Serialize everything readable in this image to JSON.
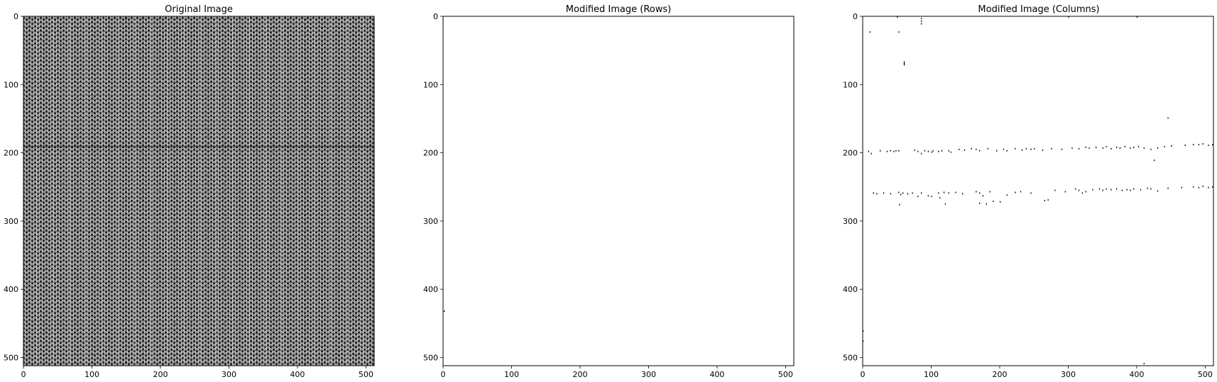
{
  "chart_data": [
    {
      "type": "heatmap",
      "title": "Original Image",
      "xlabel": "",
      "ylabel": "",
      "x_ticks": [
        0,
        100,
        200,
        300,
        400,
        500
      ],
      "y_ticks": [
        0,
        100,
        200,
        300,
        400,
        500
      ],
      "xlim": [
        0,
        512
      ],
      "ylim": [
        512,
        0
      ],
      "colormap": "gray",
      "content": "dense woven texture"
    },
    {
      "type": "heatmap",
      "title": "Modified Image (Rows)",
      "xlabel": "",
      "ylabel": "",
      "x_ticks": [
        0,
        100,
        200,
        300,
        400,
        500
      ],
      "y_ticks": [
        0,
        100,
        200,
        300,
        400,
        500
      ],
      "xlim": [
        0,
        512
      ],
      "ylim": [
        512,
        0
      ],
      "colormap": "gray",
      "marks": [
        [
          1,
          431
        ]
      ]
    },
    {
      "type": "heatmap",
      "title": "Modified Image (Columns)",
      "xlabel": "",
      "ylabel": "",
      "x_ticks": [
        0,
        100,
        200,
        300,
        400,
        500
      ],
      "y_ticks": [
        0,
        100,
        200,
        300,
        400,
        500
      ],
      "xlim": [
        0,
        512
      ],
      "ylim": [
        512,
        0
      ],
      "colormap": "gray",
      "marks": [
        [
          50,
          0
        ],
        [
          85,
          2
        ],
        [
          85,
          6
        ],
        [
          85,
          10
        ],
        [
          300,
          0
        ],
        [
          400,
          0
        ],
        [
          10,
          22
        ],
        [
          52,
          22
        ],
        [
          60,
          66
        ],
        [
          60,
          68
        ],
        [
          60,
          70
        ],
        [
          445,
          148
        ],
        [
          425,
          210
        ],
        [
          8,
          197
        ],
        [
          12,
          200
        ],
        [
          25,
          196
        ],
        [
          35,
          197
        ],
        [
          40,
          196
        ],
        [
          45,
          197
        ],
        [
          48,
          196
        ],
        [
          52,
          196
        ],
        [
          75,
          195
        ],
        [
          80,
          197
        ],
        [
          85,
          200
        ],
        [
          90,
          196
        ],
        [
          95,
          197
        ],
        [
          100,
          198
        ],
        [
          102,
          196
        ],
        [
          110,
          197
        ],
        [
          115,
          196
        ],
        [
          125,
          196
        ],
        [
          128,
          198
        ],
        [
          140,
          194
        ],
        [
          148,
          195
        ],
        [
          158,
          193
        ],
        [
          165,
          194
        ],
        [
          170,
          196
        ],
        [
          182,
          193
        ],
        [
          195,
          196
        ],
        [
          205,
          194
        ],
        [
          210,
          196
        ],
        [
          222,
          193
        ],
        [
          232,
          195
        ],
        [
          238,
          193
        ],
        [
          245,
          194
        ],
        [
          250,
          193
        ],
        [
          262,
          195
        ],
        [
          275,
          193
        ],
        [
          290,
          194
        ],
        [
          305,
          192
        ],
        [
          315,
          193
        ],
        [
          325,
          191
        ],
        [
          330,
          192
        ],
        [
          340,
          191
        ],
        [
          350,
          192
        ],
        [
          355,
          190
        ],
        [
          362,
          193
        ],
        [
          370,
          191
        ],
        [
          375,
          192
        ],
        [
          382,
          190
        ],
        [
          390,
          192
        ],
        [
          395,
          191
        ],
        [
          402,
          190
        ],
        [
          410,
          192
        ],
        [
          420,
          194
        ],
        [
          430,
          192
        ],
        [
          440,
          190
        ],
        [
          450,
          189
        ],
        [
          470,
          188
        ],
        [
          482,
          187
        ],
        [
          490,
          187
        ],
        [
          496,
          186
        ],
        [
          504,
          188
        ],
        [
          510,
          187
        ],
        [
          15,
          258
        ],
        [
          20,
          259
        ],
        [
          30,
          258
        ],
        [
          40,
          259
        ],
        [
          52,
          257
        ],
        [
          55,
          260
        ],
        [
          58,
          258
        ],
        [
          65,
          259
        ],
        [
          72,
          258
        ],
        [
          80,
          263
        ],
        [
          85,
          258
        ],
        [
          95,
          262
        ],
        [
          100,
          263
        ],
        [
          110,
          258
        ],
        [
          112,
          265
        ],
        [
          118,
          257
        ],
        [
          125,
          258
        ],
        [
          135,
          257
        ],
        [
          145,
          259
        ],
        [
          165,
          256
        ],
        [
          170,
          258
        ],
        [
          175,
          262
        ],
        [
          185,
          256
        ],
        [
          190,
          270
        ],
        [
          200,
          271
        ],
        [
          210,
          261
        ],
        [
          222,
          257
        ],
        [
          230,
          256
        ],
        [
          245,
          258
        ],
        [
          265,
          269
        ],
        [
          280,
          254
        ],
        [
          295,
          256
        ],
        [
          310,
          252
        ],
        [
          315,
          254
        ],
        [
          320,
          258
        ],
        [
          325,
          256
        ],
        [
          335,
          253
        ],
        [
          345,
          252
        ],
        [
          350,
          254
        ],
        [
          355,
          252
        ],
        [
          362,
          253
        ],
        [
          370,
          252
        ],
        [
          378,
          254
        ],
        [
          385,
          253
        ],
        [
          390,
          254
        ],
        [
          395,
          252
        ],
        [
          405,
          253
        ],
        [
          415,
          251
        ],
        [
          420,
          252
        ],
        [
          430,
          255
        ],
        [
          445,
          251
        ],
        [
          465,
          250
        ],
        [
          482,
          249
        ],
        [
          490,
          250
        ],
        [
          496,
          248
        ],
        [
          504,
          250
        ],
        [
          510,
          249
        ],
        [
          53,
          275
        ],
        [
          120,
          274
        ],
        [
          170,
          273
        ],
        [
          180,
          274
        ],
        [
          270,
          268
        ],
        [
          0,
          460
        ],
        [
          0,
          475
        ],
        [
          410,
          508
        ]
      ]
    }
  ]
}
